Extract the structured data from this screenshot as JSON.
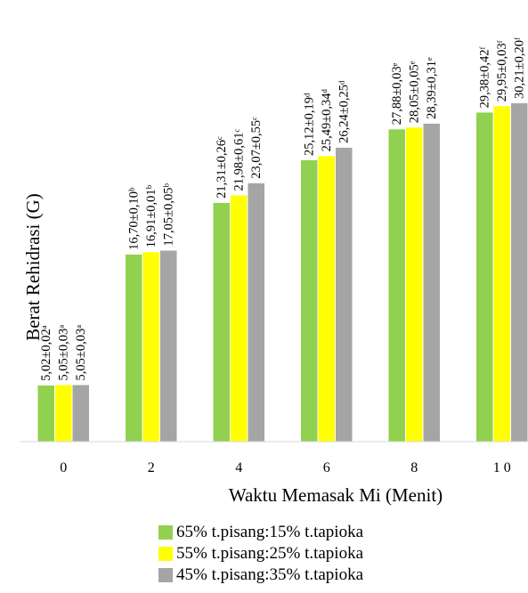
{
  "chart_data": {
    "type": "bar",
    "xlabel": "Waktu Memasak Mi (Menit)",
    "ylabel": "Berat Rehidrasi (G)",
    "categories": [
      "0",
      "2",
      "4",
      "6",
      "8",
      "1 0"
    ],
    "ylim": [
      0,
      30.21
    ],
    "grid": false,
    "legend_position": "bottom",
    "series": [
      {
        "name": "65% t.pisang:15% t.tapioka",
        "color": "#92d050",
        "values": [
          5.02,
          16.7,
          21.31,
          25.12,
          27.88,
          29.38
        ],
        "labels": [
          "5,02±0,02ᵃ",
          "16,70±0,10ᵇ",
          "21,31±0,26ᶜ",
          "25,12±0,19ᵈ",
          "27,88±0,03ᵉ",
          "29,38±0,42ᶠ"
        ]
      },
      {
        "name": "55% t.pisang:25% t.tapioka",
        "color": "#ffff00",
        "values": [
          5.05,
          16.91,
          21.98,
          25.49,
          28.05,
          29.95
        ],
        "labels": [
          "5,05±0,03ᵃ",
          "16,91±0,01ᵇ",
          "21,98±0,61ᶜ",
          "25,49±0,34ᵈ",
          "28,05±0,05ᵉ",
          "29,95±0,03ᶠ"
        ]
      },
      {
        "name": "45% t.pisang:35% t.tapioka",
        "color": "#a5a5a5",
        "values": [
          5.05,
          17.05,
          23.07,
          26.24,
          28.39,
          30.21
        ],
        "labels": [
          "5,05±0,03ᵃ",
          "17,05±0,05ᵇ",
          "23,07±0,55ᶜ",
          "26,24±0,25ᵈ",
          "28,39±0,31ᵉ",
          "30,21±0,20ᶠ"
        ]
      }
    ]
  }
}
